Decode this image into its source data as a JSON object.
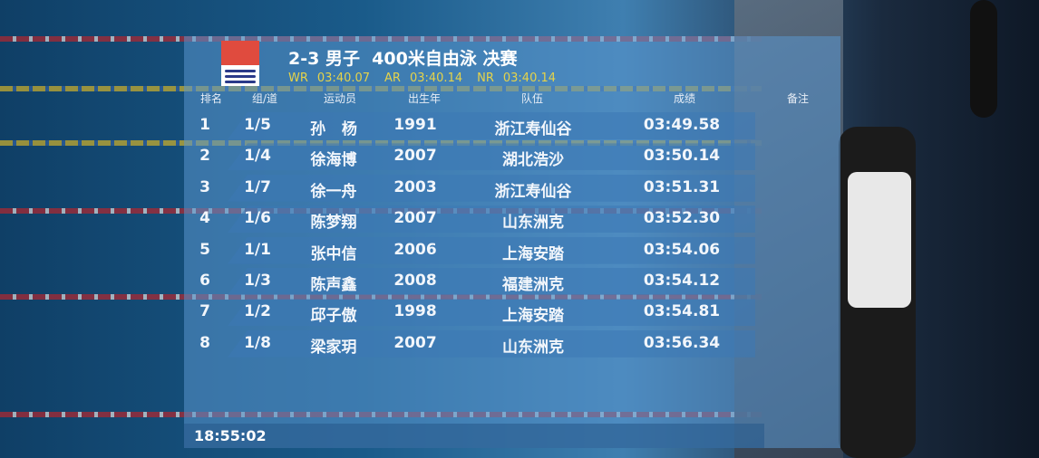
{
  "event": {
    "title": "2-3 男子  400米自由泳 决赛",
    "records": [
      {
        "label": "WR",
        "time": "03:40.07"
      },
      {
        "label": "AR",
        "time": "03:40.14"
      },
      {
        "label": "NR",
        "time": "03:40.14"
      }
    ]
  },
  "columns": [
    "排名",
    "组/道",
    "运动员",
    "出生年",
    "队伍",
    "成绩",
    "备注"
  ],
  "results": [
    {
      "rank": "1",
      "lane": "1/5",
      "name": "孙   杨",
      "year": "1991",
      "team": "浙江寿仙谷",
      "time": "03:49.58"
    },
    {
      "rank": "2",
      "lane": "1/4",
      "name": "徐海博",
      "year": "2007",
      "team": "湖北浩沙",
      "time": "03:50.14"
    },
    {
      "rank": "3",
      "lane": "1/7",
      "name": "徐一舟",
      "year": "2003",
      "team": "浙江寿仙谷",
      "time": "03:51.31"
    },
    {
      "rank": "4",
      "lane": "1/6",
      "name": "陈梦翔",
      "year": "2007",
      "team": "山东洲克",
      "time": "03:52.30"
    },
    {
      "rank": "5",
      "lane": "1/1",
      "name": "张中信",
      "year": "2006",
      "team": "上海安踏",
      "time": "03:54.06"
    },
    {
      "rank": "6",
      "lane": "1/3",
      "name": "陈声鑫",
      "year": "2008",
      "team": "福建洲克",
      "time": "03:54.12"
    },
    {
      "rank": "7",
      "lane": "1/2",
      "name": "邱子傲",
      "year": "1998",
      "team": "上海安踏",
      "time": "03:54.81"
    },
    {
      "rank": "8",
      "lane": "1/8",
      "name": "梁家玥",
      "year": "2007",
      "team": "山东洲克",
      "time": "03:56.34"
    }
  ],
  "clock": "18:55:02",
  "colors": {
    "record": "#e5d34a",
    "logo_red": "#e04b3e"
  }
}
